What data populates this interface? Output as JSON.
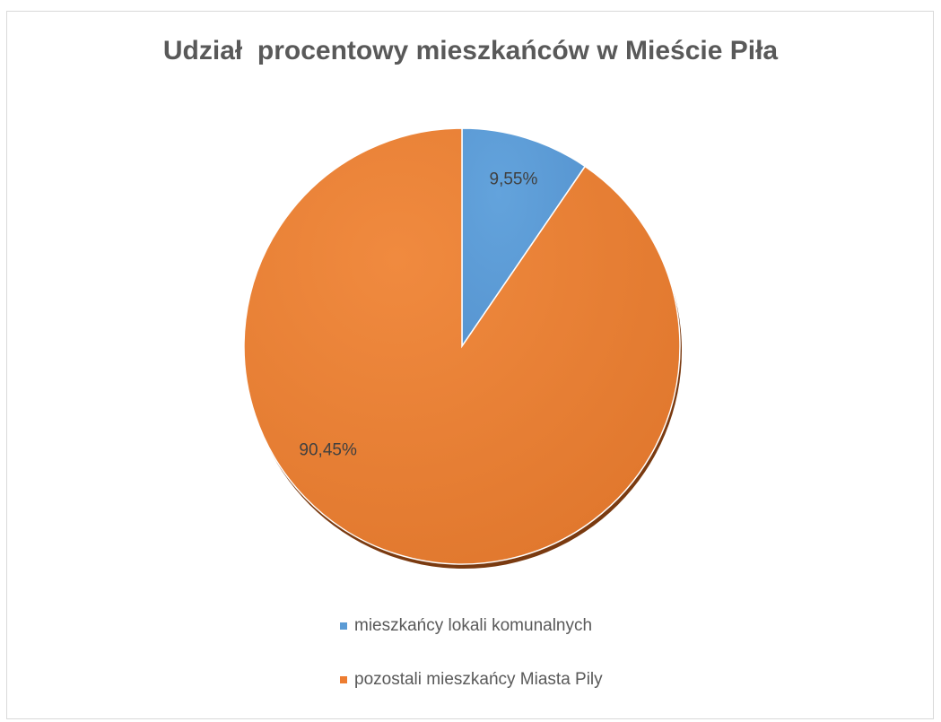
{
  "chart_data": {
    "type": "pie",
    "title": "Udział  procentowy mieszkańców w Mieście Piła",
    "series": [
      {
        "values": [
          9.55,
          90.45
        ]
      }
    ],
    "categories": [
      "mieszkańcy lokali komunalnych",
      "pozostali mieszkańcy Miasta Pily"
    ],
    "data_labels": [
      "9,55%",
      "90,45%"
    ],
    "colors": [
      "#5b9bd5",
      "#ed7d31"
    ],
    "legend_position": "bottom"
  }
}
